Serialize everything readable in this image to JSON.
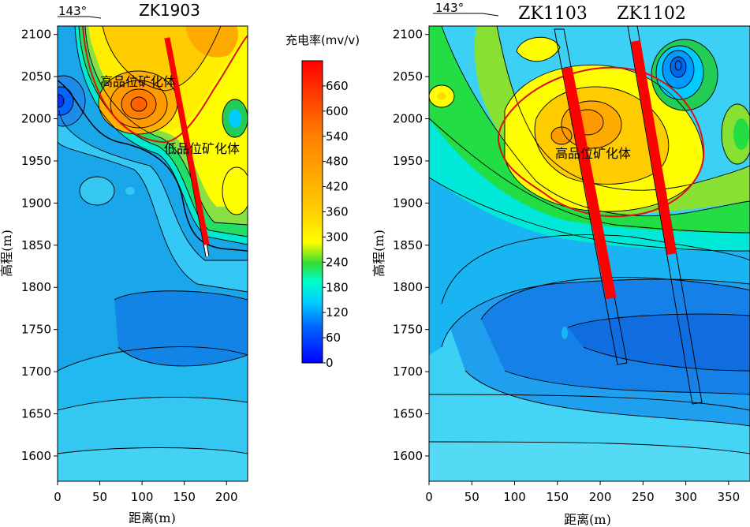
{
  "chart_data": [
    {
      "type": "heatmap",
      "borehole": "ZK1903",
      "azimuth": "143°",
      "xlabel": "距离(m)",
      "ylabel": "高程(m)",
      "xlim": [
        0,
        225
      ],
      "ylim": [
        1570,
        2110
      ],
      "xticks": [
        0,
        50,
        100,
        150,
        200
      ],
      "yticks": [
        1600,
        1650,
        1700,
        1750,
        1800,
        1850,
        1900,
        1950,
        2000,
        2050,
        2100
      ],
      "annotations": [
        "高品位矿化体",
        "低品位矿化体"
      ]
    },
    {
      "type": "heatmap",
      "boreholes": [
        "ZK1103",
        "ZK1102"
      ],
      "azimuth": "143°",
      "xlabel": "距离(m)",
      "ylabel": "高程(m)",
      "xlim": [
        0,
        375
      ],
      "ylim": [
        1570,
        2110
      ],
      "xticks": [
        0,
        50,
        100,
        150,
        200,
        250,
        300,
        350
      ],
      "yticks": [
        1600,
        1650,
        1700,
        1750,
        1800,
        1850,
        1900,
        1950,
        2000,
        2050,
        2100
      ],
      "annotations": [
        "高品位矿化体"
      ]
    }
  ],
  "legend": {
    "title": "充电率(mv/v)",
    "ticks": [
      "660",
      "600",
      "540",
      "480",
      "420",
      "360",
      "300",
      "240",
      "180",
      "120",
      "60",
      "0"
    ],
    "colors": [
      "#ff0000",
      "#ff3300",
      "#ff6600",
      "#ff8a00",
      "#ffa800",
      "#ffc000",
      "#ffd800",
      "#ffff00",
      "#33dd33",
      "#00ffff",
      "#0099ff",
      "#0000ff"
    ]
  }
}
